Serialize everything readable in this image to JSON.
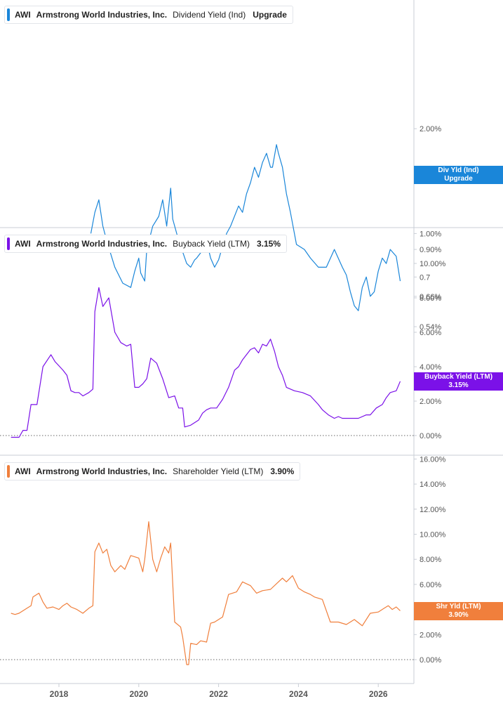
{
  "colors": {
    "dividend": "#1a86d9",
    "buyback": "#7b11e8",
    "shareholder": "#f07f3c",
    "grid": "#d9dde3",
    "axis_text": "#555555"
  },
  "x_axis": {
    "ticks": [
      "2018",
      "2020",
      "2022",
      "2024",
      "2026"
    ]
  },
  "panels": [
    {
      "ticker": "AWI",
      "company": "Armstrong World Industries, Inc.",
      "metric": "Dividend Yield (Ind)",
      "value": "Upgrade",
      "tag_line1": "Div Yld (Ind)",
      "tag_line2": "Upgrade",
      "y_ticks": [
        "2.00%",
        "1.00%",
        "0.90%",
        "0.7",
        "0.66%",
        "0.54%"
      ]
    },
    {
      "ticker": "AWI",
      "company": "Armstrong World Industries, Inc.",
      "metric": "Buyback Yield (LTM)",
      "value": "3.15%",
      "tag_line1": "Buyback Yield (LTM)",
      "tag_line2": "3.15%",
      "y_ticks": [
        "10.00%",
        "8.00%",
        "6.00%",
        "4.00%",
        "2.00%",
        "0.00%"
      ]
    },
    {
      "ticker": "AWI",
      "company": "Armstrong World Industries, Inc.",
      "metric": "Shareholder Yield (LTM)",
      "value": "3.90%",
      "tag_line1": "Shr Yld (LTM)",
      "tag_line2": "3.90%",
      "y_ticks": [
        "16.00%",
        "14.00%",
        "12.00%",
        "10.00%",
        "8.00%",
        "6.00%",
        "4.00%",
        "2.00%",
        "0.00%"
      ]
    }
  ],
  "chart_data": [
    {
      "type": "line",
      "y_scale": "log",
      "ylim": [
        0.54,
        2.3
      ],
      "series": [
        {
          "name": "Dividend Yield (Ind)",
          "x": [
            2018.8,
            2018.9,
            2019.0,
            2019.1,
            2019.2,
            2019.4,
            2019.6,
            2019.8,
            2019.9,
            2020.0,
            2020.05,
            2020.15,
            2020.2,
            2020.35,
            2020.5,
            2020.6,
            2020.7,
            2020.8,
            2020.85,
            2020.95,
            2021.05,
            2021.2,
            2021.3,
            2021.4,
            2021.45,
            2021.55,
            2021.7,
            2021.8,
            2021.9,
            2022.0,
            2022.1,
            2022.2,
            2022.3,
            2022.5,
            2022.6,
            2022.7,
            2022.8,
            2022.9,
            2023.0,
            2023.1,
            2023.2,
            2023.3,
            2023.35,
            2023.45,
            2023.5,
            2023.6,
            2023.7,
            2023.8,
            2023.95,
            2024.15,
            2024.3,
            2024.5,
            2024.7,
            2024.9,
            2025.1,
            2025.2,
            2025.3,
            2025.4,
            2025.5,
            2025.6,
            2025.7,
            2025.8,
            2025.9,
            2026.0,
            2026.1,
            2026.2,
            2026.3,
            2026.45,
            2026.55
          ],
          "values": [
            1.0,
            1.15,
            1.25,
            1.05,
            0.95,
            0.8,
            0.72,
            0.7,
            0.78,
            0.85,
            0.77,
            0.73,
            0.9,
            1.05,
            1.12,
            1.25,
            1.05,
            1.35,
            1.1,
            1.0,
            0.92,
            0.82,
            0.8,
            0.84,
            0.85,
            0.88,
            0.95,
            0.85,
            0.8,
            0.84,
            0.92,
            1.0,
            1.05,
            1.2,
            1.15,
            1.3,
            1.4,
            1.55,
            1.45,
            1.6,
            1.7,
            1.55,
            1.55,
            1.8,
            1.7,
            1.55,
            1.3,
            1.15,
            0.93,
            0.9,
            0.85,
            0.8,
            0.8,
            0.9,
            0.8,
            0.76,
            0.68,
            0.62,
            0.6,
            0.7,
            0.75,
            0.66,
            0.68,
            0.78,
            0.85,
            0.82,
            0.9,
            0.86,
            0.73
          ]
        }
      ]
    },
    {
      "type": "line",
      "ylim": [
        -0.5,
        11.5
      ],
      "series": [
        {
          "name": "Buyback Yield (LTM)",
          "x": [
            2016.8,
            2017.0,
            2017.1,
            2017.2,
            2017.3,
            2017.45,
            2017.6,
            2017.8,
            2017.9,
            2018.1,
            2018.2,
            2018.3,
            2018.4,
            2018.5,
            2018.6,
            2018.75,
            2018.85,
            2018.9,
            2019.0,
            2019.1,
            2019.25,
            2019.4,
            2019.55,
            2019.7,
            2019.8,
            2019.9,
            2020.0,
            2020.1,
            2020.2,
            2020.3,
            2020.45,
            2020.6,
            2020.75,
            2020.9,
            2021.0,
            2021.1,
            2021.15,
            2021.3,
            2021.5,
            2021.6,
            2021.7,
            2021.8,
            2021.95,
            2022.1,
            2022.25,
            2022.4,
            2022.5,
            2022.6,
            2022.8,
            2022.9,
            2023.0,
            2023.1,
            2023.2,
            2023.3,
            2023.4,
            2023.5,
            2023.6,
            2023.7,
            2023.9,
            2024.1,
            2024.3,
            2024.5,
            2024.6,
            2024.75,
            2024.9,
            2025.0,
            2025.1,
            2025.3,
            2025.5,
            2025.7,
            2025.8,
            2025.95,
            2026.1,
            2026.2,
            2026.3,
            2026.45,
            2026.55
          ],
          "values": [
            -0.1,
            -0.1,
            0.3,
            0.3,
            1.8,
            1.8,
            4.0,
            4.7,
            4.3,
            3.8,
            3.5,
            2.6,
            2.5,
            2.5,
            2.3,
            2.5,
            2.7,
            7.2,
            8.6,
            7.5,
            8.0,
            6.0,
            5.4,
            5.2,
            5.3,
            2.8,
            2.8,
            3.0,
            3.3,
            4.5,
            4.2,
            3.3,
            2.2,
            2.3,
            1.6,
            1.6,
            0.5,
            0.6,
            0.9,
            1.3,
            1.5,
            1.6,
            1.6,
            2.1,
            2.8,
            3.8,
            4.0,
            4.4,
            5.0,
            5.1,
            4.8,
            5.3,
            5.2,
            5.6,
            4.9,
            4.0,
            3.5,
            2.8,
            2.6,
            2.5,
            2.3,
            1.8,
            1.5,
            1.2,
            1.0,
            1.1,
            1.0,
            1.0,
            1.0,
            1.2,
            1.2,
            1.6,
            1.8,
            2.2,
            2.5,
            2.6,
            3.15
          ]
        }
      ]
    },
    {
      "type": "line",
      "ylim": [
        -1.5,
        16.0
      ],
      "series": [
        {
          "name": "Shareholder Yield (LTM)",
          "x": [
            2016.8,
            2016.9,
            2017.0,
            2017.1,
            2017.2,
            2017.3,
            2017.35,
            2017.5,
            2017.6,
            2017.7,
            2017.85,
            2018.0,
            2018.1,
            2018.2,
            2018.3,
            2018.45,
            2018.6,
            2018.75,
            2018.85,
            2018.9,
            2019.0,
            2019.1,
            2019.2,
            2019.3,
            2019.4,
            2019.55,
            2019.65,
            2019.8,
            2020.0,
            2020.1,
            2020.15,
            2020.25,
            2020.35,
            2020.45,
            2020.55,
            2020.65,
            2020.75,
            2020.8,
            2020.9,
            2021.05,
            2021.1,
            2021.2,
            2021.25,
            2021.3,
            2021.45,
            2021.55,
            2021.7,
            2021.8,
            2021.9,
            2022.1,
            2022.25,
            2022.45,
            2022.6,
            2022.8,
            2022.95,
            2023.1,
            2023.3,
            2023.5,
            2023.6,
            2023.7,
            2023.85,
            2024.0,
            2024.15,
            2024.3,
            2024.4,
            2024.6,
            2024.8,
            2025.0,
            2025.2,
            2025.4,
            2025.6,
            2025.8,
            2026.0,
            2026.15,
            2026.25,
            2026.35,
            2026.45,
            2026.55
          ],
          "values": [
            3.7,
            3.6,
            3.7,
            3.9,
            4.1,
            4.3,
            5.0,
            5.3,
            4.6,
            4.1,
            4.2,
            4.0,
            4.3,
            4.5,
            4.2,
            4.0,
            3.7,
            4.1,
            4.3,
            8.6,
            9.3,
            8.5,
            8.8,
            7.5,
            7.0,
            7.5,
            7.2,
            8.3,
            8.1,
            7.0,
            8.0,
            11.0,
            8.0,
            7.0,
            8.1,
            9.0,
            8.5,
            9.3,
            3.0,
            2.6,
            1.8,
            -0.4,
            -0.4,
            1.3,
            1.2,
            1.5,
            1.4,
            2.9,
            3.0,
            3.4,
            5.2,
            5.4,
            6.2,
            5.9,
            5.3,
            5.5,
            5.6,
            6.2,
            6.5,
            6.2,
            6.7,
            5.7,
            5.4,
            5.2,
            5.0,
            4.8,
            3.0,
            3.0,
            2.8,
            3.2,
            2.7,
            3.7,
            3.8,
            4.1,
            4.3,
            4.0,
            4.2,
            3.9
          ]
        }
      ]
    }
  ]
}
